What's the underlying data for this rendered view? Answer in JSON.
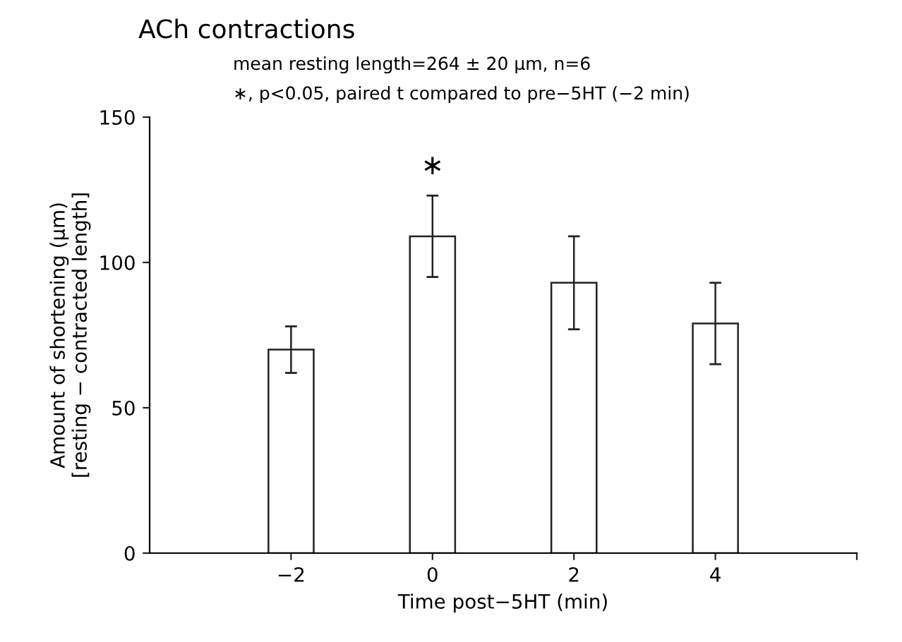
{
  "chart_data": {
    "type": "bar",
    "title": "ACh contractions",
    "subtitle": "mean resting length=264 ± 20 μm, n=6",
    "annotations": [
      "∗, p<0.05, paired t compared to pre−5HT (−2 min)",
      {
        "text": "∗",
        "x": 0,
        "y": 123
      }
    ],
    "xlabel": "Time post−5HT (min)",
    "ylabel": "Amount of shortening (μm)\n[resting − contracted length]",
    "x": [
      -2,
      0,
      2,
      4
    ],
    "values": [
      70,
      109,
      93,
      79
    ],
    "errors": [
      8,
      14,
      16,
      14
    ],
    "color": "#ffffff",
    "xlim": [
      -4,
      6
    ],
    "xticks": [
      {
        "value": -2,
        "label": "−2"
      },
      0,
      2,
      4,
      {
        "value": 6,
        "label": null
      }
    ],
    "ylim": [
      0,
      150
    ],
    "yticks": [
      0,
      50,
      100,
      150
    ],
    "grid": false,
    "legend": false
  }
}
